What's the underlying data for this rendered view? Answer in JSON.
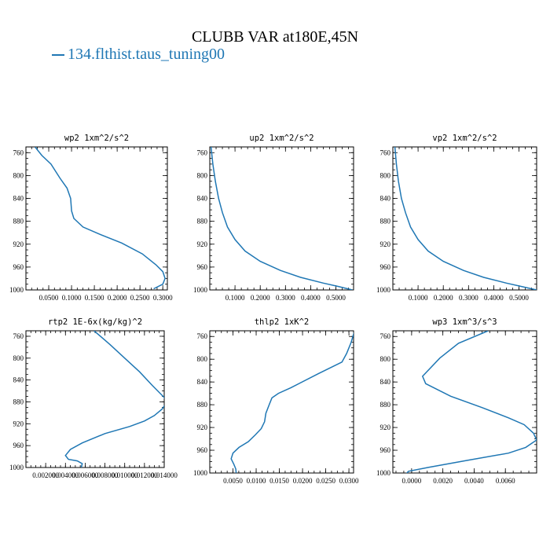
{
  "title": "CLUBB VAR at180E,45N",
  "legend": {
    "entries": [
      {
        "name": "134.flthist.taus_tuning00",
        "color": "#1f77b4"
      }
    ]
  },
  "chart_data": [
    {
      "type": "line",
      "title": "wp2  1xm^2/s^2",
      "xlim": [
        0,
        0.31
      ],
      "ylim": [
        1000,
        750
      ],
      "y_inverted": true,
      "xticks": [
        0.05,
        0.1,
        0.15,
        0.2,
        0.25,
        0.3
      ],
      "xtick_labels": [
        "0.0500",
        "0.1000",
        "0.1500",
        "0.2000",
        "0.2500",
        "0.3000"
      ],
      "yticks": [
        760,
        800,
        840,
        880,
        920,
        960,
        1000
      ],
      "ytick_labels": [
        "760",
        "800",
        "840",
        "880",
        "920",
        "960",
        "1000"
      ],
      "series": [
        {
          "color": "#1f77b4",
          "x": [
            0.02,
            0.035,
            0.055,
            0.075,
            0.09,
            0.098,
            0.1,
            0.105,
            0.125,
            0.16,
            0.21,
            0.255,
            0.285,
            0.3,
            0.305,
            0.3,
            0.28
          ],
          "y": [
            750,
            765,
            780,
            805,
            822,
            840,
            862,
            875,
            890,
            902,
            918,
            937,
            956,
            968,
            980,
            990,
            998
          ]
        }
      ]
    },
    {
      "type": "line",
      "title": "up2  1xm^2/s^2",
      "xlim": [
        0,
        0.57
      ],
      "ylim": [
        1000,
        750
      ],
      "y_inverted": true,
      "xticks": [
        0.1,
        0.2,
        0.3,
        0.4,
        0.5
      ],
      "xtick_labels": [
        "0.1000",
        "0.2000",
        "0.3000",
        "0.4000",
        "0.5000"
      ],
      "yticks": [
        760,
        800,
        840,
        880,
        920,
        960,
        1000
      ],
      "ytick_labels": [
        "760",
        "800",
        "840",
        "880",
        "920",
        "960",
        "1000"
      ],
      "series": [
        {
          "color": "#1f77b4",
          "x": [
            0.005,
            0.012,
            0.022,
            0.035,
            0.05,
            0.07,
            0.1,
            0.14,
            0.2,
            0.28,
            0.36,
            0.45,
            0.51,
            0.565
          ],
          "y": [
            750,
            780,
            810,
            840,
            865,
            890,
            912,
            932,
            950,
            966,
            978,
            988,
            994,
            1000
          ]
        }
      ]
    },
    {
      "type": "line",
      "title": "vp2  1xm^2/s^2",
      "xlim": [
        0,
        0.57
      ],
      "ylim": [
        1000,
        750
      ],
      "y_inverted": true,
      "xticks": [
        0.1,
        0.2,
        0.3,
        0.4,
        0.5
      ],
      "xtick_labels": [
        "0.1000",
        "0.2000",
        "0.3000",
        "0.4000",
        "0.5000"
      ],
      "yticks": [
        760,
        800,
        840,
        880,
        920,
        960,
        1000
      ],
      "ytick_labels": [
        "760",
        "800",
        "840",
        "880",
        "920",
        "960",
        "1000"
      ],
      "series": [
        {
          "color": "#1f77b4",
          "x": [
            0.008,
            0.014,
            0.022,
            0.034,
            0.05,
            0.07,
            0.1,
            0.14,
            0.2,
            0.28,
            0.36,
            0.45,
            0.51,
            0.57
          ],
          "y": [
            750,
            780,
            810,
            840,
            865,
            890,
            912,
            932,
            950,
            966,
            978,
            988,
            994,
            1000
          ]
        }
      ]
    },
    {
      "type": "line",
      "title": "rtp2  1E-6x(kg/kg)^2",
      "xlim": [
        0,
        0.014
      ],
      "ylim": [
        1000,
        750
      ],
      "y_inverted": true,
      "xticks": [
        0.002,
        0.004,
        0.006,
        0.008,
        0.01,
        0.012,
        0.014
      ],
      "xtick_labels": [
        "0.002000",
        "0.004000",
        "0.006000",
        "0.008000",
        "0.010000",
        "0.012000",
        "0.014000"
      ],
      "yticks": [
        760,
        800,
        840,
        880,
        920,
        960,
        1000
      ],
      "ytick_labels": [
        "760",
        "800",
        "840",
        "880",
        "920",
        "960",
        "1000"
      ],
      "series": [
        {
          "color": "#1f77b4",
          "x": [
            0.0069,
            0.0085,
            0.01,
            0.0115,
            0.0128,
            0.014,
            0.0142,
            0.0138,
            0.013,
            0.012,
            0.0105,
            0.008,
            0.0057,
            0.0045,
            0.004,
            0.0043,
            0.0052,
            0.0057,
            0.0056
          ],
          "y": [
            750,
            775,
            800,
            825,
            850,
            872,
            882,
            893,
            905,
            915,
            925,
            938,
            955,
            967,
            978,
            985,
            988,
            993,
            1000
          ]
        }
      ]
    },
    {
      "type": "line",
      "title": "thlp2  1xK^2",
      "xlim": [
        0,
        0.031
      ],
      "ylim": [
        1000,
        750
      ],
      "y_inverted": true,
      "xticks": [
        0.005,
        0.01,
        0.015,
        0.02,
        0.025,
        0.03
      ],
      "xtick_labels": [
        "0.0050",
        "0.0100",
        "0.0150",
        "0.0200",
        "0.0250",
        "0.0300"
      ],
      "yticks": [
        760,
        800,
        840,
        880,
        920,
        960,
        1000
      ],
      "ytick_labels": [
        "760",
        "800",
        "840",
        "880",
        "920",
        "960",
        "1000"
      ],
      "series": [
        {
          "color": "#1f77b4",
          "x": [
            0.0312,
            0.0305,
            0.0295,
            0.0285,
            0.0235,
            0.0175,
            0.0148,
            0.0134,
            0.0128,
            0.0121,
            0.0118,
            0.0111,
            0.0098,
            0.0083,
            0.0063,
            0.005,
            0.0046,
            0.0052,
            0.0056,
            0.0057
          ],
          "y": [
            750,
            770,
            790,
            805,
            825,
            850,
            860,
            868,
            880,
            895,
            910,
            922,
            933,
            945,
            955,
            965,
            975,
            985,
            993,
            1000
          ]
        }
      ]
    },
    {
      "type": "line",
      "title": "wp3  1xm^3/s^3",
      "xlim": [
        -0.0012,
        0.008
      ],
      "ylim": [
        1000,
        750
      ],
      "y_inverted": true,
      "xticks": [
        0.0,
        0.002,
        0.004,
        0.006
      ],
      "xtick_labels": [
        "0.0000",
        "0.0020",
        "0.0040",
        "0.0060"
      ],
      "yticks": [
        760,
        800,
        840,
        880,
        920,
        960,
        1000
      ],
      "ytick_labels": [
        "760",
        "800",
        "840",
        "880",
        "920",
        "960",
        "1000"
      ],
      "series": [
        {
          "color": "#1f77b4",
          "x": [
            0.0049,
            0.003,
            0.0018,
            0.0007,
            0.0009,
            0.0025,
            0.0045,
            0.0062,
            0.0072,
            0.0078,
            0.008,
            0.0073,
            0.0062,
            0.0035,
            0.0011,
            -0.0002,
            -0.0003,
            -0.0002
          ],
          "y": [
            750,
            772,
            798,
            830,
            843,
            865,
            885,
            903,
            915,
            930,
            942,
            955,
            965,
            978,
            990,
            997,
            1000,
            1002
          ]
        }
      ]
    }
  ]
}
